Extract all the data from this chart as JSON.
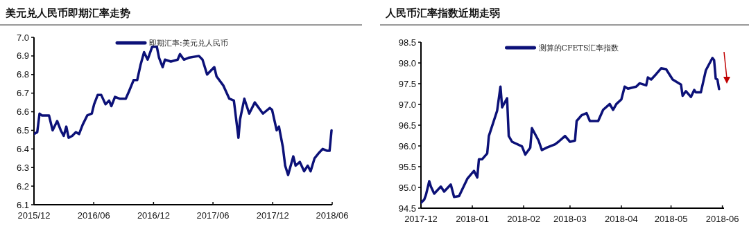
{
  "chart_data": [
    {
      "type": "line",
      "title": "美元兑人民币即期汇率走势",
      "legend": "top",
      "x": [
        "2015-12-01",
        "2015-12-11",
        "2015-12-18",
        "2015-12-25",
        "2016-01-16",
        "2016-01-27",
        "2016-02-10",
        "2016-02-21",
        "2016-03-01",
        "2016-03-09",
        "2016-03-16",
        "2016-03-27",
        "2016-04-07",
        "2016-04-17",
        "2016-04-28",
        "2016-05-12",
        "2016-05-26",
        "2016-06-02",
        "2016-06-13",
        "2016-06-24",
        "2016-07-07",
        "2016-07-18",
        "2016-07-25",
        "2016-08-05",
        "2016-08-19",
        "2016-09-07",
        "2016-09-17",
        "2016-10-01",
        "2016-10-12",
        "2016-10-22",
        "2016-11-02",
        "2016-11-13",
        "2016-11-27",
        "2016-12-11",
        "2016-12-18",
        "2016-12-29",
        "2017-01-05",
        "2017-01-23",
        "2017-02-13",
        "2017-02-20",
        "2017-03-04",
        "2017-03-18",
        "2017-04-19",
        "2017-04-30",
        "2017-05-14",
        "2017-06-05",
        "2017-06-12",
        "2017-07-03",
        "2017-07-21",
        "2017-08-04",
        "2017-08-18",
        "2017-08-23",
        "2017-09-05",
        "2017-09-20",
        "2017-10-07",
        "2017-11-01",
        "2017-11-22",
        "2017-11-29",
        "2017-12-13",
        "2017-12-20",
        "2018-01-01",
        "2018-01-08",
        "2018-01-17",
        "2018-02-02",
        "2018-02-09",
        "2018-02-22",
        "2018-03-07",
        "2018-03-18",
        "2018-03-27",
        "2018-04-08",
        "2018-04-22",
        "2018-05-03",
        "2018-05-17",
        "2018-05-24",
        "2018-05-30"
      ],
      "series": [
        {
          "name": "即期汇率:美元兑人民币",
          "color": "#0c1178",
          "values": [
            6.48,
            6.49,
            6.59,
            6.58,
            6.58,
            6.5,
            6.55,
            6.5,
            6.47,
            6.52,
            6.46,
            6.47,
            6.49,
            6.48,
            6.53,
            6.58,
            6.59,
            6.64,
            6.69,
            6.69,
            6.64,
            6.66,
            6.63,
            6.68,
            6.67,
            6.67,
            6.71,
            6.77,
            6.77,
            6.85,
            6.92,
            6.88,
            6.95,
            6.95,
            6.89,
            6.84,
            6.88,
            6.87,
            6.88,
            6.91,
            6.88,
            6.89,
            6.9,
            6.88,
            6.8,
            6.84,
            6.79,
            6.74,
            6.67,
            6.66,
            6.46,
            6.56,
            6.67,
            6.59,
            6.65,
            6.59,
            6.62,
            6.61,
            6.5,
            6.52,
            6.41,
            6.31,
            6.26,
            6.36,
            6.31,
            6.33,
            6.28,
            6.31,
            6.28,
            6.35,
            6.38,
            6.4,
            6.39,
            6.39,
            6.5
          ]
        }
      ],
      "xlim": [
        "2015-12-01",
        "2018-06-01"
      ],
      "xticks": [
        {
          "value": "2015-12-01",
          "label": "2015/12"
        },
        {
          "value": "2016-06-01",
          "label": "2016/06"
        },
        {
          "value": "2016-12-01",
          "label": "2016/12"
        },
        {
          "value": "2017-06-01",
          "label": "2017/06"
        },
        {
          "value": "2017-12-01",
          "label": "2017/12"
        },
        {
          "value": "2018-06-01",
          "label": "2018/06"
        }
      ],
      "ylim": [
        6.1,
        7.0
      ],
      "yticks": [
        6.1,
        6.2,
        6.3,
        6.4,
        6.5,
        6.6,
        6.7,
        6.8,
        6.9,
        {
          "value": 7.0,
          "label": "7.0"
        }
      ]
    },
    {
      "type": "line",
      "title": "人民币汇率指数近期走弱",
      "legend": "top",
      "x": [
        "2017-12-01",
        "2017-12-03",
        "2017-12-04",
        "2017-12-06",
        "2017-12-07",
        "2017-12-09",
        "2017-12-13",
        "2017-12-15",
        "2017-12-19",
        "2017-12-21",
        "2017-12-24",
        "2017-12-26",
        "2017-12-29",
        "2018-01-02",
        "2018-01-04",
        "2018-01-05",
        "2018-01-07",
        "2018-01-10",
        "2018-01-11",
        "2018-01-16",
        "2018-01-18",
        "2018-01-19",
        "2018-01-22",
        "2018-01-23",
        "2018-01-25",
        "2018-01-31",
        "2018-02-02",
        "2018-02-05",
        "2018-02-06",
        "2018-02-10",
        "2018-02-12",
        "2018-02-15",
        "2018-02-20",
        "2018-02-22",
        "2018-02-26",
        "2018-03-01",
        "2018-03-04",
        "2018-03-05",
        "2018-03-08",
        "2018-03-11",
        "2018-03-13",
        "2018-03-18",
        "2018-03-21",
        "2018-03-25",
        "2018-03-27",
        "2018-03-29",
        "2018-04-01",
        "2018-04-03",
        "2018-04-05",
        "2018-04-10",
        "2018-04-12",
        "2018-04-16",
        "2018-04-17",
        "2018-04-19",
        "2018-04-22",
        "2018-04-25",
        "2018-04-28",
        "2018-05-02",
        "2018-05-07",
        "2018-05-08",
        "2018-05-10",
        "2018-05-13",
        "2018-05-15",
        "2018-05-16",
        "2018-05-19",
        "2018-05-22",
        "2018-05-26",
        "2018-05-27",
        "2018-05-28",
        "2018-05-29",
        "2018-05-30"
      ],
      "series": [
        {
          "name": "测算的CFETS汇率指数",
          "color": "#0c1178",
          "values": [
            94.63,
            94.71,
            94.82,
            95.15,
            95.02,
            94.85,
            95.02,
            94.9,
            95.07,
            94.77,
            94.79,
            94.96,
            95.21,
            95.4,
            95.24,
            95.68,
            95.68,
            95.82,
            96.24,
            96.85,
            97.43,
            96.93,
            97.15,
            96.24,
            96.1,
            95.99,
            95.79,
            95.96,
            96.43,
            96.13,
            95.9,
            95.96,
            96.04,
            96.1,
            96.24,
            96.1,
            96.13,
            96.6,
            96.74,
            96.79,
            96.6,
            96.6,
            96.87,
            97.01,
            96.87,
            97.01,
            97.12,
            97.43,
            97.38,
            97.43,
            97.51,
            97.46,
            97.65,
            97.6,
            97.73,
            97.87,
            97.85,
            97.6,
            97.48,
            97.21,
            97.32,
            97.18,
            97.35,
            97.29,
            97.29,
            97.82,
            98.12,
            98.07,
            97.62,
            97.6,
            97.37
          ]
        }
      ],
      "xlim": [
        "2017-12-01",
        "2018-06-02"
      ],
      "xticks": [
        {
          "value": "2017-12-01",
          "label": "2017-12"
        },
        {
          "value": "2018-01-01",
          "label": "2018-01"
        },
        {
          "value": "2018-02-01",
          "label": "2018-02"
        },
        {
          "value": "2018-03-01",
          "label": "2018-03"
        },
        {
          "value": "2018-04-01",
          "label": "2018-04"
        },
        {
          "value": "2018-05-01",
          "label": "2018-05"
        },
        {
          "value": "2018-06-01",
          "label": "2018-06"
        }
      ],
      "ylim": [
        94.5,
        98.5
      ],
      "yticks": [
        94.5,
        {
          "value": 95.0,
          "label": "95.0"
        },
        95.5,
        {
          "value": 96.0,
          "label": "96.0"
        },
        96.5,
        {
          "value": 97.0,
          "label": "97.0"
        },
        97.5,
        {
          "value": 98.0,
          "label": "98.0"
        },
        98.5
      ]
    }
  ]
}
